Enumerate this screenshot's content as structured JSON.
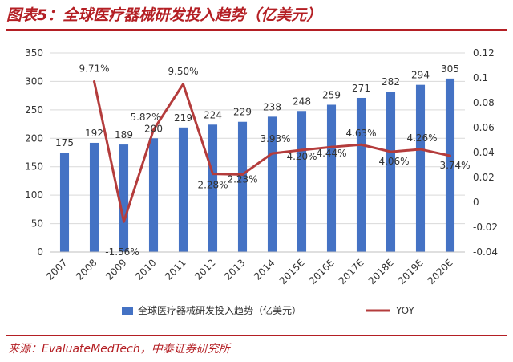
{
  "header": {
    "title": "图表5：全球医疗器械研发投入趋势（亿美元）"
  },
  "footer": {
    "source": "来源：EvaluateMedTech，中泰证券研究所"
  },
  "colors": {
    "accent": "#b41f24",
    "bar": "#4472c4",
    "line": "#b43c3c"
  },
  "chart_data": {
    "type": "bar",
    "categories": [
      "2007",
      "2008",
      "2009",
      "2010",
      "2011",
      "2012",
      "2013",
      "2014",
      "2015E",
      "2016E",
      "2017E",
      "2018E",
      "2019E",
      "2020E"
    ],
    "series": [
      {
        "name": "全球医疗器械研发投入趋势（亿美元）",
        "type": "bar",
        "axis": "left",
        "values": [
          175,
          192,
          189,
          200,
          219,
          224,
          229,
          238,
          248,
          259,
          271,
          282,
          294,
          305
        ],
        "labels": [
          "175",
          "192",
          "189",
          "200",
          "219",
          "224",
          "229",
          "238",
          "248",
          "259",
          "271",
          "282",
          "294",
          "305"
        ]
      },
      {
        "name": "YOY",
        "type": "line",
        "axis": "right",
        "values": [
          null,
          0.0971,
          -0.0156,
          0.0582,
          0.095,
          0.0228,
          0.0223,
          0.0393,
          0.042,
          0.0444,
          0.0463,
          0.0406,
          0.0426,
          0.0374
        ],
        "labels": [
          "",
          "9.71%",
          "-1.56%",
          "5.82%",
          "9.50%",
          "2.28%",
          "2.23%",
          "3.93%",
          "4.20%",
          "4.44%",
          "4.63%",
          "4.06%",
          "4.26%",
          "3.74%"
        ]
      }
    ],
    "y_left": {
      "min": 0,
      "max": 350,
      "ticks": [
        "0",
        "50",
        "100",
        "150",
        "200",
        "250",
        "300",
        "350"
      ]
    },
    "y_right": {
      "min": -0.04,
      "max": 0.12,
      "ticks": [
        "-0.04",
        "-0.02",
        "0",
        "0.02",
        "0.04",
        "0.06",
        "0.08",
        "0.1",
        "0.12"
      ]
    },
    "legend": "bottom"
  }
}
